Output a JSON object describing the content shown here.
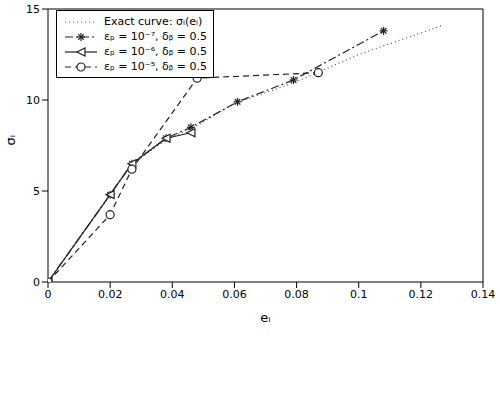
{
  "chart_data": {
    "type": "line",
    "x_label": "eᵢ",
    "y_label": "σᵢ",
    "xlim": [
      0,
      0.14
    ],
    "xticks": [
      0,
      0.02,
      0.04,
      0.06,
      0.08,
      0.1,
      0.12,
      0.14
    ],
    "ylim": [
      0,
      15
    ],
    "yticks": [
      0,
      5,
      10,
      15
    ],
    "grid": false,
    "legend": "upper left",
    "series": [
      {
        "name": "Exact curve: σᵢ(eᵢ)",
        "color": "#555555",
        "marker": "none",
        "line_style": "dotted",
        "x": [
          0,
          0.02,
          0.027,
          0.038,
          0.047,
          0.06,
          0.08,
          0.1,
          0.127
        ],
        "values": [
          0,
          4.8,
          6.5,
          7.8,
          8.5,
          9.8,
          11,
          12.5,
          14.1
        ]
      },
      {
        "name": "εₚ = 10⁻⁷, δᵦ = 0.5",
        "color": "#222222",
        "marker": "star",
        "line_style": "dashdot",
        "x": [
          0,
          0.02,
          0.027,
          0.038,
          0.046,
          0.061,
          0.079,
          0.108
        ],
        "values": [
          0,
          4.8,
          6.5,
          7.9,
          8.5,
          9.9,
          11.1,
          13.8
        ]
      },
      {
        "name": "εₚ = 10⁻⁶, δᵦ = 0.5",
        "color": "#222222",
        "marker": "triangle-left",
        "line_style": "solid",
        "x": [
          0,
          0.02,
          0.027,
          0.038,
          0.046
        ],
        "values": [
          0,
          4.8,
          6.5,
          7.9,
          8.2
        ]
      },
      {
        "name": "εₚ = 10⁻⁵, δᵦ = 0.5",
        "color": "#222222",
        "marker": "circle",
        "line_style": "dashed",
        "x": [
          0,
          0.02,
          0.027,
          0.048,
          0.087
        ],
        "values": [
          0,
          3.7,
          6.2,
          11.2,
          11.5
        ]
      }
    ]
  }
}
